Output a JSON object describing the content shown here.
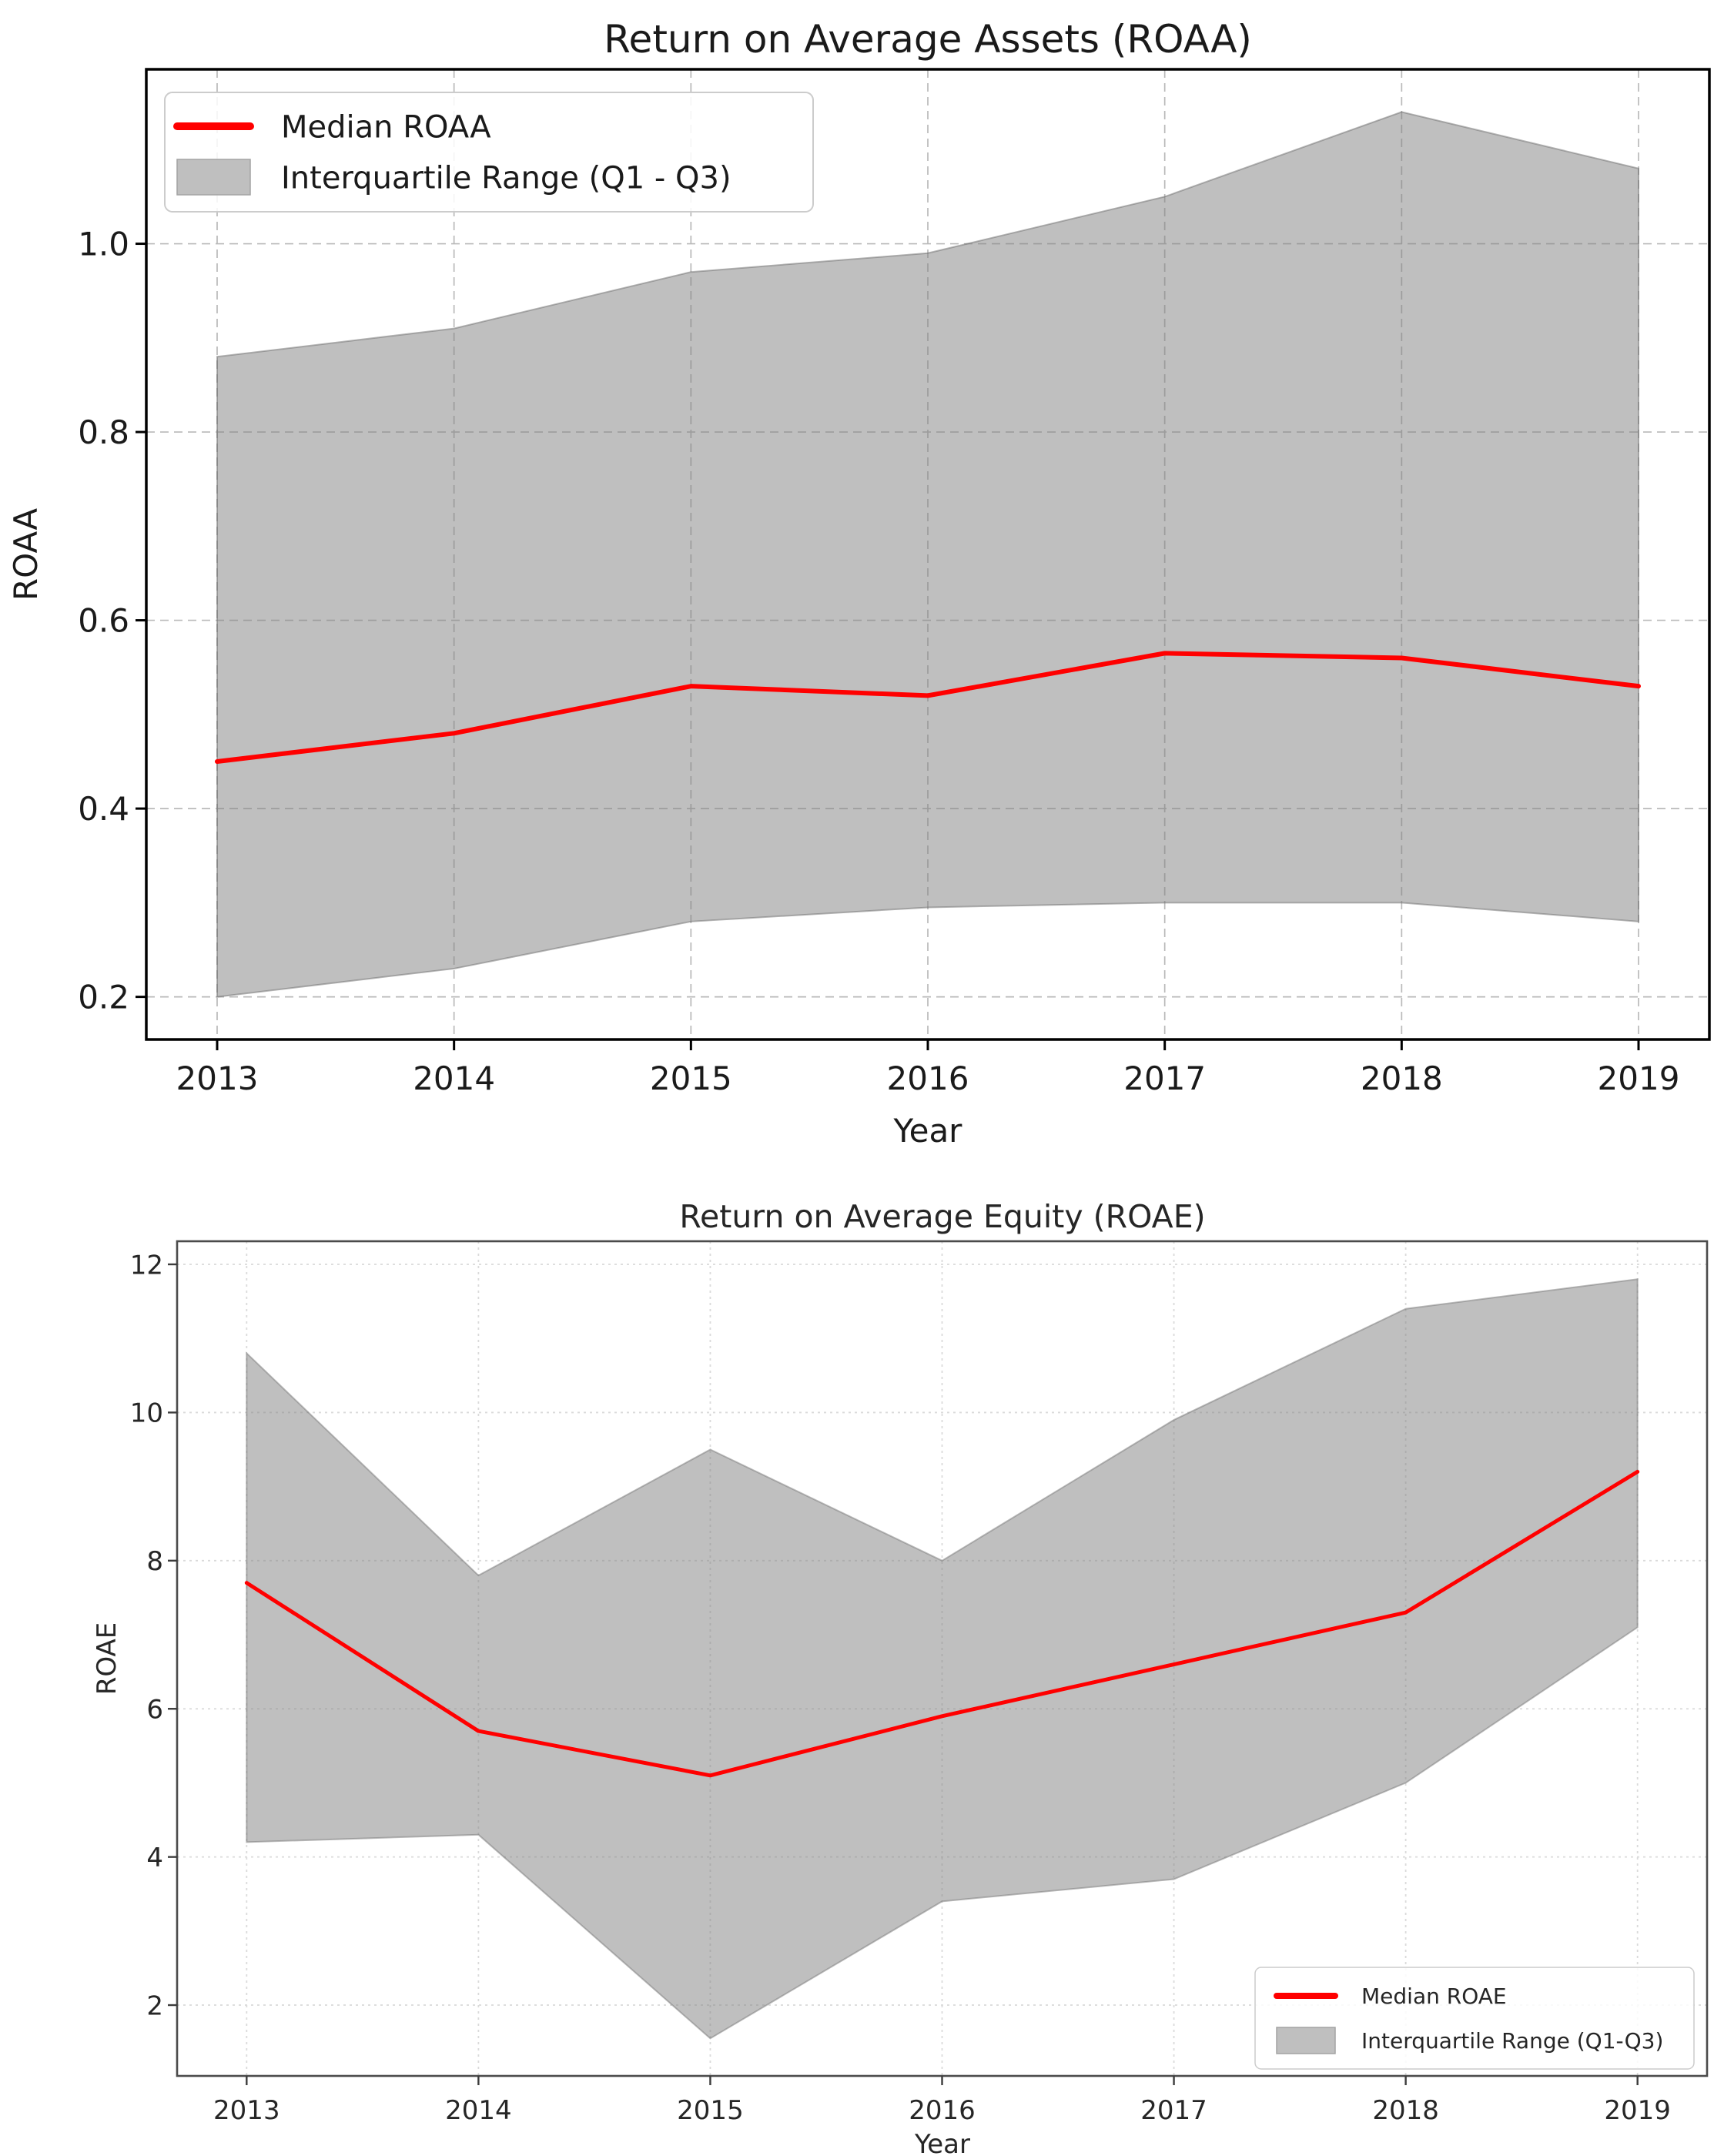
{
  "page": {
    "background": "#ffffff"
  },
  "chart_data": [
    {
      "id": "roaa",
      "type": "line",
      "title": "Return on Average Assets (ROAA)",
      "xlabel": "Year",
      "ylabel": "ROAA",
      "x": [
        2013,
        2014,
        2015,
        2016,
        2017,
        2018,
        2019
      ],
      "xticklabels": [
        "2013",
        "2014",
        "2015",
        "2016",
        "2017",
        "2018",
        "2019"
      ],
      "yticks": [
        0.2,
        0.4,
        0.6,
        0.8,
        1.0
      ],
      "yticklabels": [
        "0.2",
        "0.4",
        "0.6",
        "0.8",
        "1.0"
      ],
      "xlim": [
        2012.701,
        2019.299
      ],
      "ylim": [
        0.1547,
        1.1853
      ],
      "grid": "dashed",
      "legend_position": "upper-left",
      "series": [
        {
          "name": "Median ROAA",
          "kind": "line",
          "color": "#ff0000",
          "values": [
            0.45,
            0.48,
            0.53,
            0.52,
            0.565,
            0.56,
            0.53
          ]
        },
        {
          "name": "Interquartile Range (Q1 - Q3)",
          "kind": "band",
          "color": "#808080",
          "opacity": 0.5,
          "q1": [
            0.2,
            0.23,
            0.28,
            0.295,
            0.3,
            0.3,
            0.28
          ],
          "q3": [
            0.88,
            0.91,
            0.97,
            0.99,
            1.05,
            1.14,
            1.08
          ]
        }
      ]
    },
    {
      "id": "roae",
      "type": "line",
      "title": "Return on Average Equity (ROAE)",
      "xlabel": "Year",
      "ylabel": "ROAE",
      "x": [
        2013,
        2014,
        2015,
        2016,
        2017,
        2018,
        2019
      ],
      "xticklabels": [
        "2013",
        "2014",
        "2015",
        "2016",
        "2017",
        "2018",
        "2019"
      ],
      "yticks": [
        2,
        4,
        6,
        8,
        10,
        12
      ],
      "yticklabels": [
        "2",
        "4",
        "6",
        "8",
        "10",
        "12"
      ],
      "xlim": [
        2012.7,
        2019.3
      ],
      "ylim": [
        1.044,
        12.312
      ],
      "grid": "dotted",
      "legend_position": "lower-right",
      "series": [
        {
          "name": "Median ROAE",
          "kind": "line",
          "color": "#ff0000",
          "values": [
            7.7,
            5.7,
            5.1,
            5.9,
            6.6,
            7.3,
            9.2
          ]
        },
        {
          "name": "Interquartile Range (Q1-Q3)",
          "kind": "band",
          "color": "#808080",
          "opacity": 0.5,
          "q1": [
            4.2,
            4.3,
            1.55,
            3.4,
            3.7,
            5.0,
            7.1
          ],
          "q3": [
            10.8,
            7.8,
            9.5,
            8.0,
            9.9,
            11.4,
            11.8
          ]
        }
      ]
    }
  ]
}
